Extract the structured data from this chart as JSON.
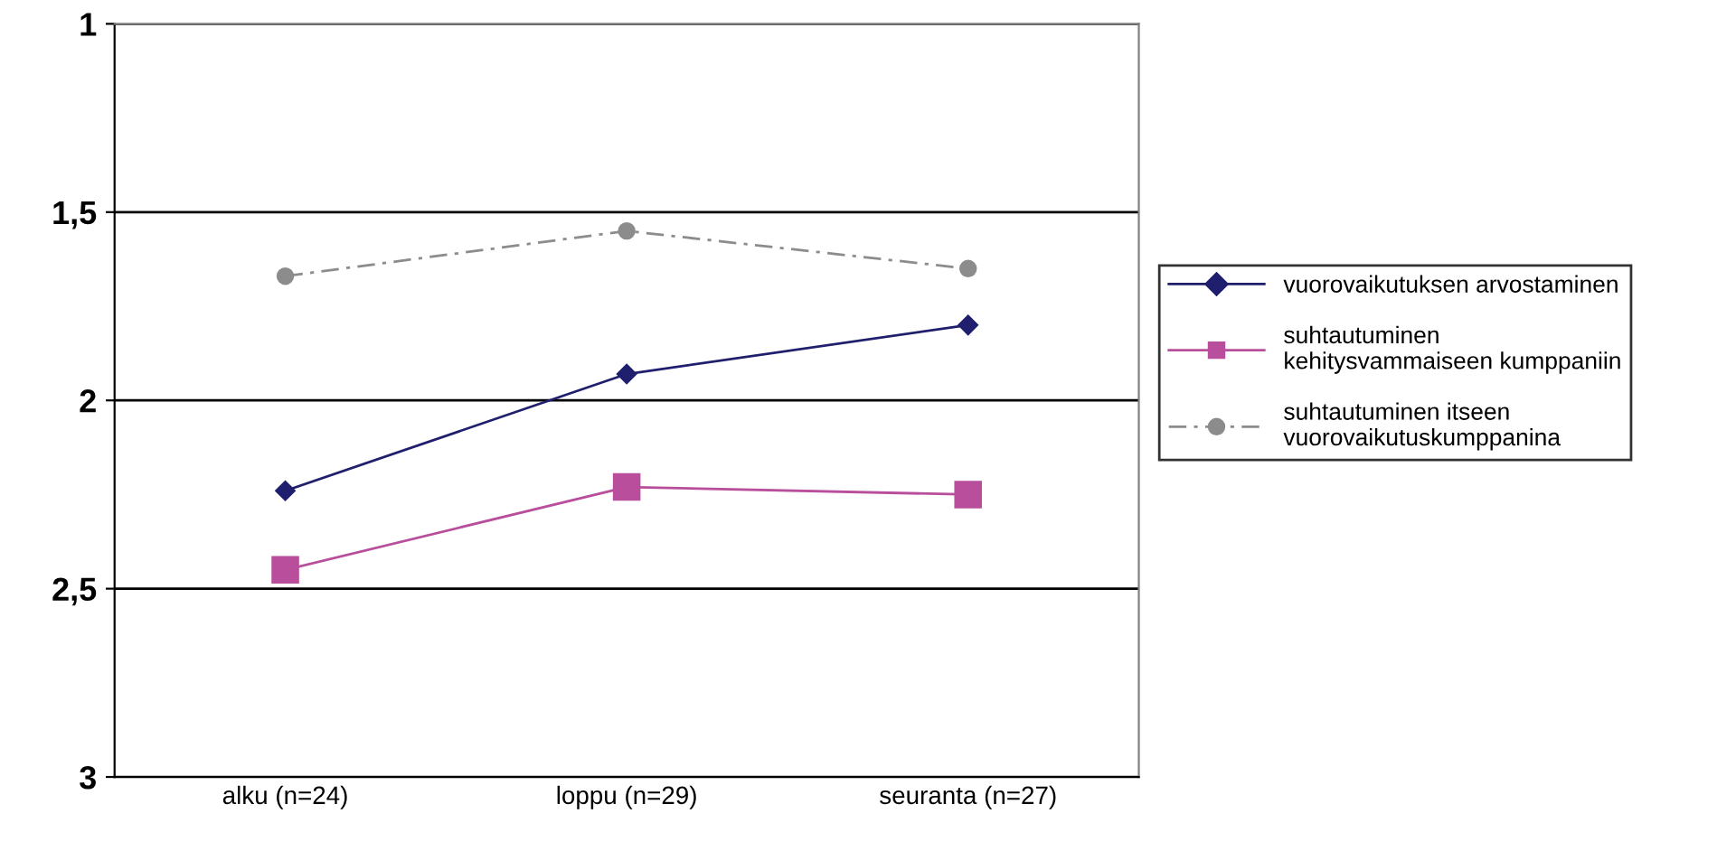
{
  "chart_data": {
    "type": "line",
    "categories": [
      "alku (n=24)",
      "loppu (n=29)",
      "seuranta (n=27)"
    ],
    "series": [
      {
        "name": "vuorovaikutuksen arvostaminen",
        "color": "#1f1f6e",
        "values": [
          2.24,
          1.93,
          1.8
        ],
        "marker": "diamond",
        "line_style": "solid"
      },
      {
        "name": "suhtautuminen\nkehitysvammaiseen kumppaniin",
        "color": "#b84e9c",
        "values": [
          2.45,
          2.23,
          2.25
        ],
        "marker": "square",
        "line_style": "solid"
      },
      {
        "name": "suhtautuminen itseen\nvuorovaikutuskumppanina",
        "color": "#8c8c8c",
        "values": [
          1.67,
          1.55,
          1.65
        ],
        "marker": "circle",
        "line_style": "dashed"
      }
    ],
    "ylim": [
      3,
      1
    ],
    "yticks": [
      {
        "value": 1,
        "label": "1"
      },
      {
        "value": 1.5,
        "label": "1,5"
      },
      {
        "value": 2,
        "label": "2"
      },
      {
        "value": 2.5,
        "label": "2,5"
      },
      {
        "value": 3,
        "label": "3"
      }
    ],
    "grid": "y",
    "legend": "right"
  }
}
